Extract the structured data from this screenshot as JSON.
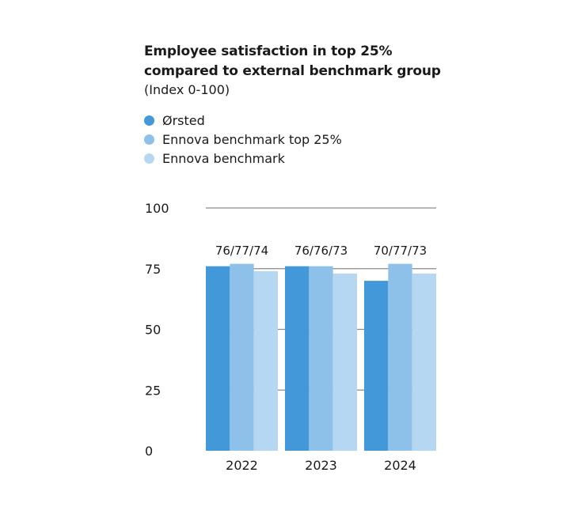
{
  "chart_data": {
    "type": "bar",
    "title": "Employee satisfaction in top 25% compared to external benchmark group",
    "title_lines": [
      "Employee satisfaction in top 25%",
      "compared to external benchmark group"
    ],
    "subtitle": "(Index 0-100)",
    "xlabel": "",
    "ylabel": "",
    "ylim": [
      0,
      100
    ],
    "yticks": [
      0,
      25,
      50,
      75,
      100
    ],
    "grid": true,
    "legend_position": "top-left",
    "categories": [
      "2022",
      "2023",
      "2024"
    ],
    "series": [
      {
        "name": "Ørsted",
        "color": "#4298d9",
        "values": [
          76,
          76,
          70
        ]
      },
      {
        "name": "Ennova benchmark top 25%",
        "color": "#8ec1e9",
        "values": [
          77,
          76,
          77
        ]
      },
      {
        "name": "Ennova benchmark",
        "color": "#b5d7f1",
        "values": [
          74,
          73,
          73
        ]
      }
    ],
    "data_labels": [
      "76/77/74",
      "76/76/73",
      "70/77/73"
    ]
  }
}
